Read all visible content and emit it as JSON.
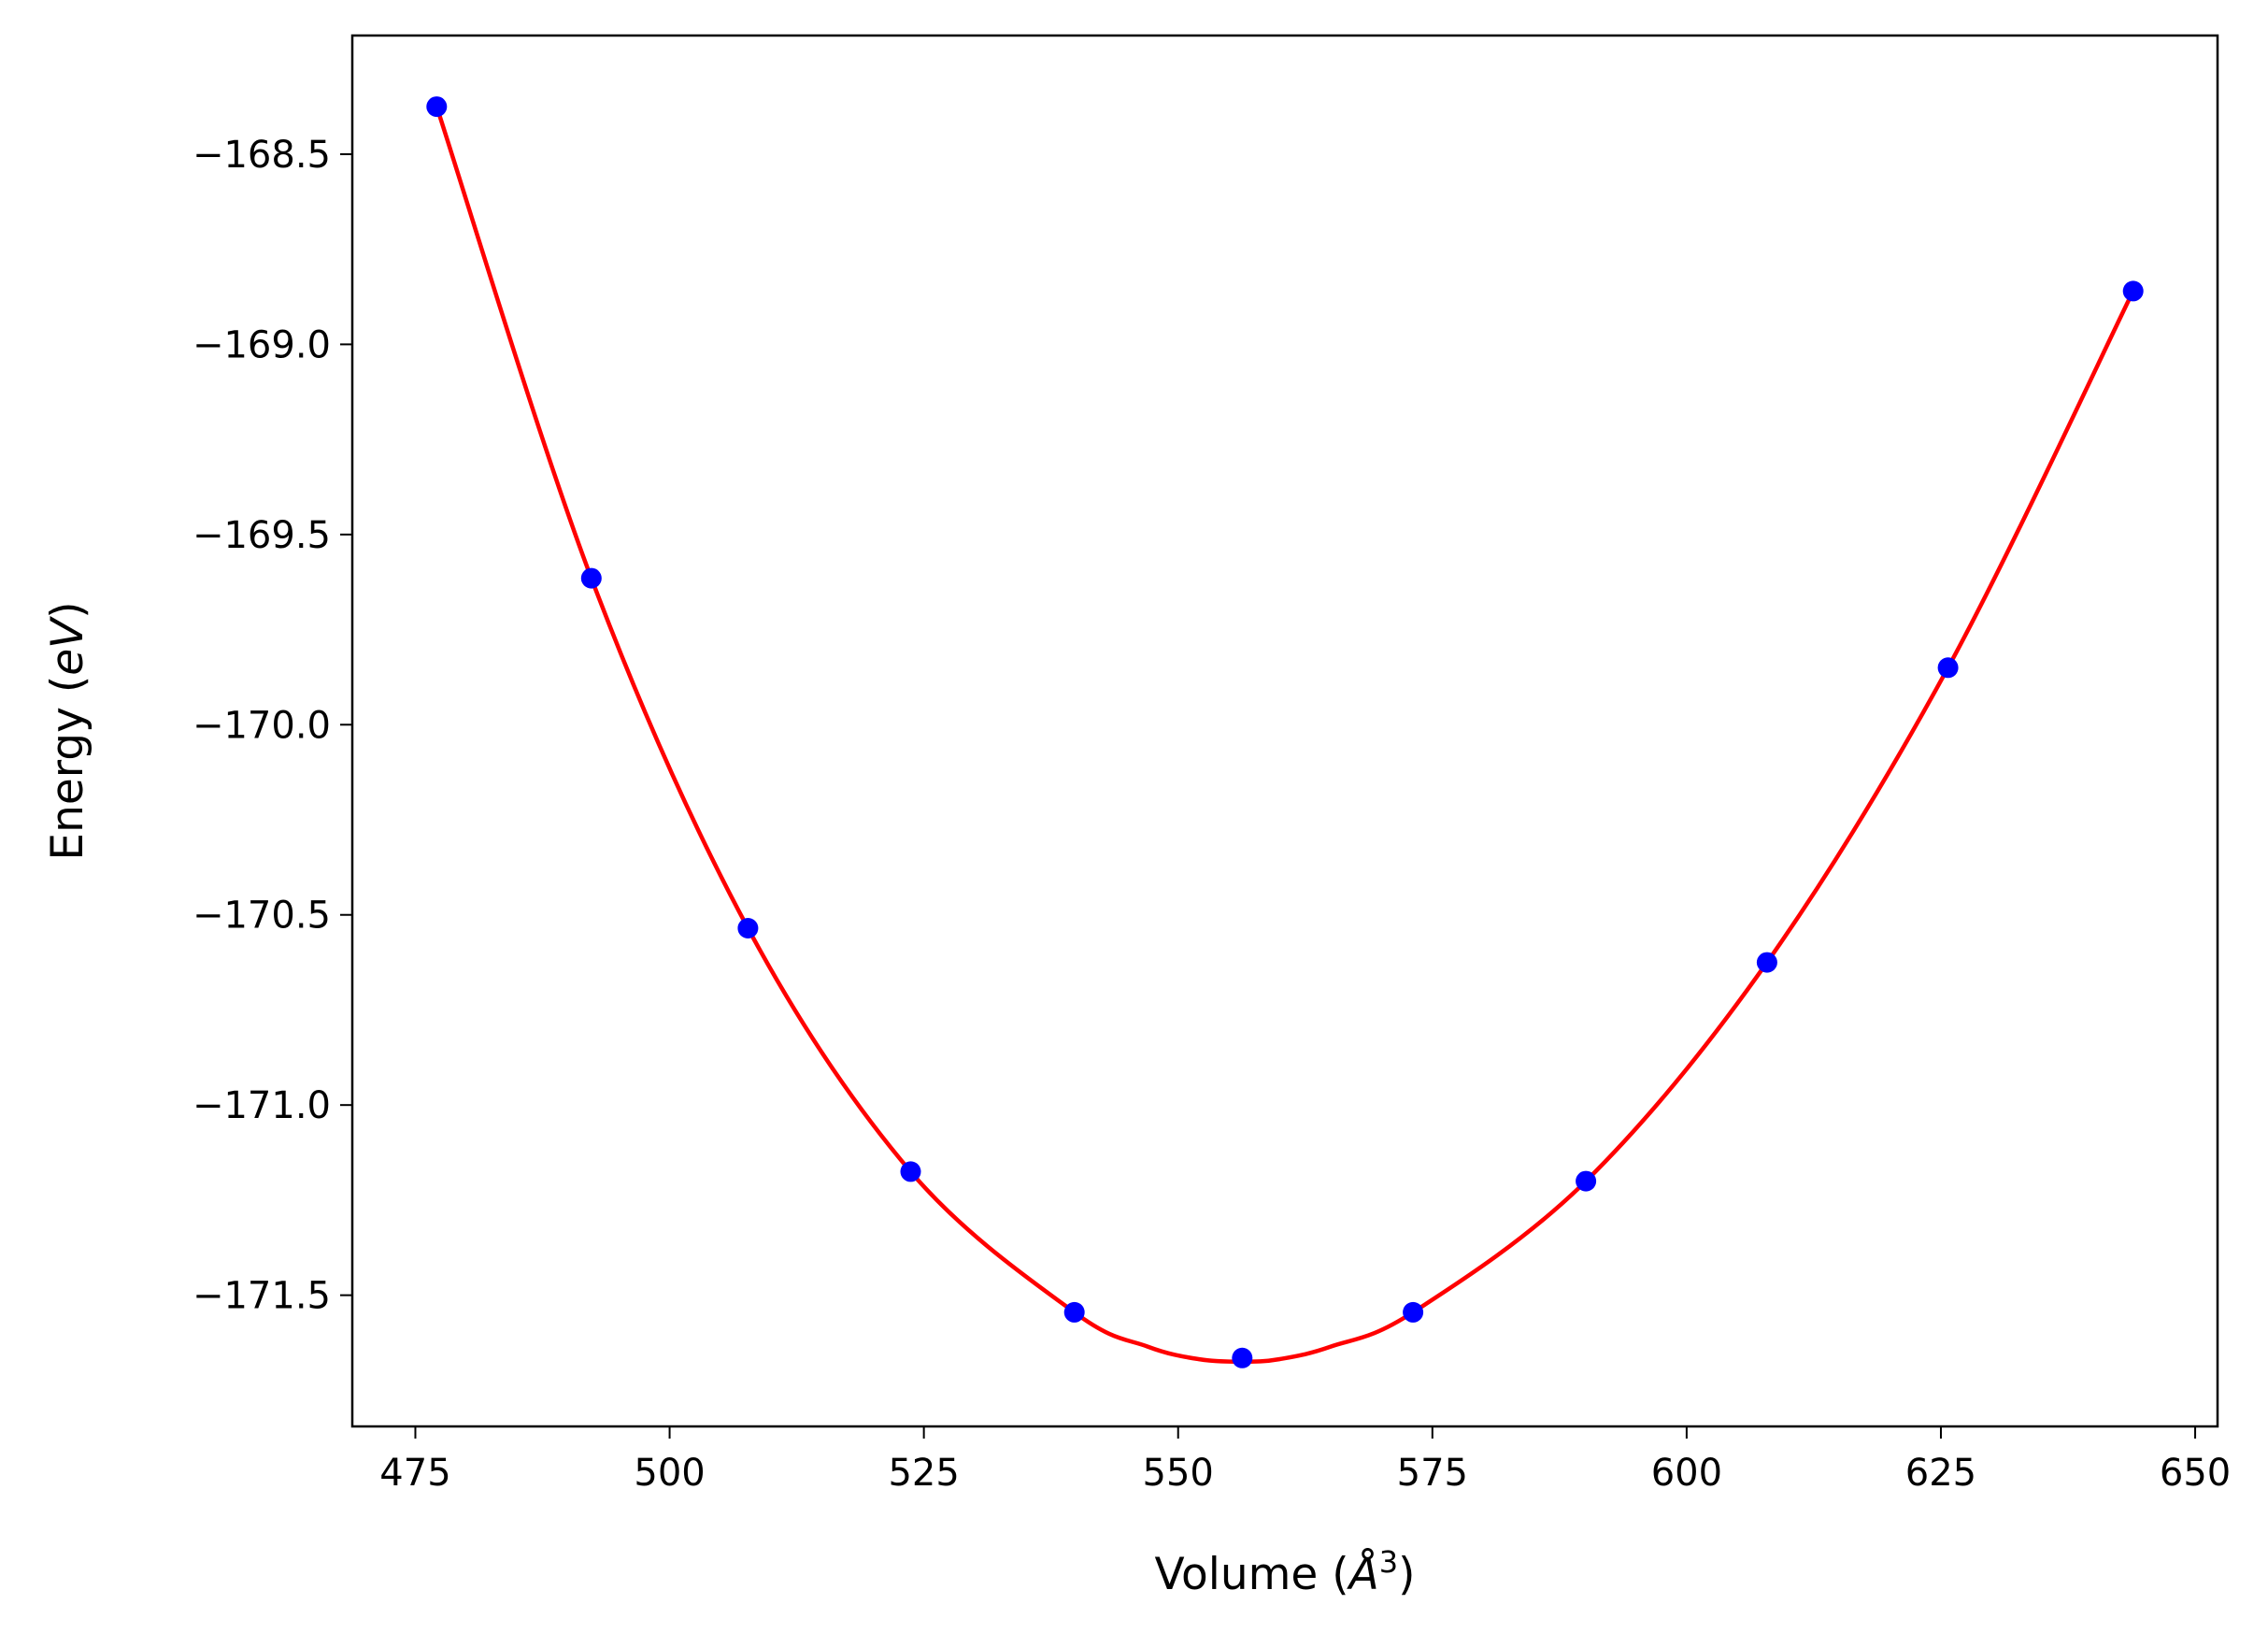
{
  "chart_data": {
    "type": "scatter",
    "xlabel_text": "Volume (",
    "xlabel_unit": "Å",
    "xlabel_sup": "3",
    "xlabel_close": ")",
    "ylabel_text": "Energy (",
    "ylabel_unit": "eV",
    "ylabel_close": ")",
    "xlim": [
      468.8,
      652.2
    ],
    "ylim": [
      -171.845,
      -168.188
    ],
    "xticks": [
      475,
      500,
      525,
      550,
      575,
      600,
      625,
      650
    ],
    "xtick_labels": [
      "475",
      "500",
      "525",
      "550",
      "575",
      "600",
      "625",
      "650"
    ],
    "yticks": [
      -168.5,
      -169.0,
      -169.5,
      -170.0,
      -170.5,
      -171.0,
      -171.5
    ],
    "ytick_labels": [
      "−168.5",
      "−169.0",
      "−169.5",
      "−170.0",
      "−170.5",
      "−171.0",
      "−171.5"
    ],
    "grid": false,
    "series": [
      {
        "kind": "points",
        "color": "#0000ff",
        "x": [
          477.1,
          492.3,
          507.7,
          523.7,
          539.8,
          556.3,
          573.1,
          590.1,
          607.9,
          625.7,
          643.9
        ],
        "y": [
          -168.375,
          -169.615,
          -170.535,
          -171.175,
          -171.545,
          -171.665,
          -171.545,
          -171.2,
          -170.625,
          -169.85,
          -168.86
        ]
      },
      {
        "kind": "fit_curve",
        "color": "#ff0000",
        "x": [
          477.1,
          492.3,
          507.7,
          523.7,
          539.8,
          547.0,
          552.0,
          556.3,
          560.0,
          565.0,
          573.1,
          590.1,
          607.9,
          625.7,
          643.9
        ],
        "y": [
          -168.375,
          -169.615,
          -170.535,
          -171.175,
          -171.545,
          -171.635,
          -171.668,
          -171.675,
          -171.668,
          -171.635,
          -171.545,
          -171.2,
          -170.625,
          -169.85,
          -168.86
        ]
      }
    ]
  }
}
